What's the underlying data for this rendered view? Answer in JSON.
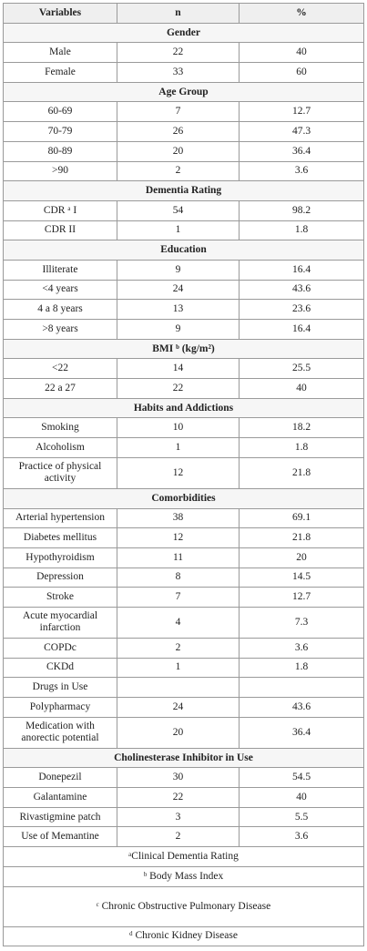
{
  "table": {
    "header": [
      "Variables",
      "n",
      "%"
    ],
    "sections": [
      {
        "title": "Gender",
        "rows": [
          [
            "Male",
            22,
            40
          ],
          [
            "Female",
            33,
            60
          ]
        ]
      },
      {
        "title": "Age Group",
        "rows": [
          [
            "60-69",
            7,
            12.7
          ],
          [
            "70-79",
            26,
            47.3
          ],
          [
            "80-89",
            20,
            36.4
          ],
          [
            ">90",
            2,
            3.6
          ]
        ]
      },
      {
        "title": "Dementia Rating",
        "rows": [
          [
            "CDR ᵃ I",
            54,
            98.2
          ],
          [
            "CDR II",
            1,
            1.8
          ]
        ]
      },
      {
        "title": "Education",
        "rows": [
          [
            "Illiterate",
            9,
            16.4
          ],
          [
            "<4 years",
            24,
            43.6
          ],
          [
            "4 a 8 years",
            13,
            23.6
          ],
          [
            ">8 years",
            9,
            16.4
          ]
        ]
      },
      {
        "title": "BMI ᵇ (kg/m²)",
        "rows": [
          [
            "<22",
            14,
            25.5
          ],
          [
            "22 a 27",
            22,
            40
          ]
        ]
      },
      {
        "title": "Habits and Addictions",
        "rows": [
          [
            "Smoking",
            10,
            18.2
          ],
          [
            "Alcoholism",
            1,
            1.8
          ],
          [
            "Practice of physical activity",
            12,
            21.8
          ]
        ]
      },
      {
        "title": "Comorbidities",
        "rows": [
          [
            "Arterial hypertension",
            38,
            69.1
          ],
          [
            "Diabetes mellitus",
            12,
            21.8
          ],
          [
            "Hypothyroidism",
            11,
            20
          ],
          [
            "Depression",
            8,
            14.5
          ],
          [
            "Stroke",
            7,
            12.7
          ],
          [
            "Acute myocardial infarction",
            4,
            7.3
          ],
          [
            "COPDc",
            2,
            3.6
          ],
          [
            "CKDd",
            1,
            1.8
          ],
          [
            "Drugs in Use"
          ],
          [
            "Polypharmacy",
            24,
            43.6
          ],
          [
            "Medication with anorectic potential",
            20,
            36.4
          ]
        ]
      },
      {
        "title": "Cholinesterase Inhibitor in Use",
        "rows": [
          [
            "Donepezil",
            30,
            54.5
          ],
          [
            "Galantamine",
            22,
            40
          ],
          [
            "Rivastigmine patch",
            3,
            5.5
          ],
          [
            "Use of Memantine",
            2,
            3.6
          ]
        ]
      }
    ],
    "footnotes": [
      "ᵃClinical Dementia Rating",
      "ᵇ Body Mass Index",
      "ᶜ Chronic Obstructive Pulmonary Disease",
      "ᵈ Chronic Kidney Disease"
    ]
  }
}
